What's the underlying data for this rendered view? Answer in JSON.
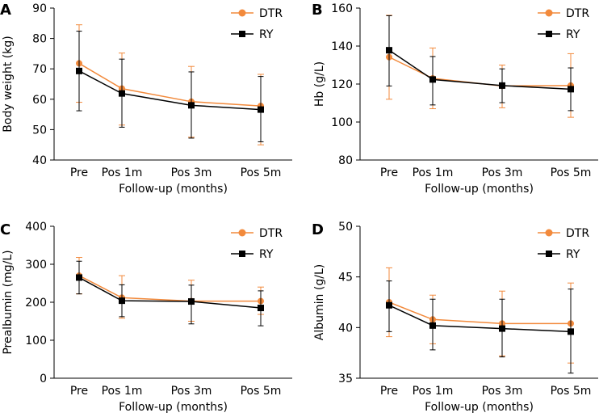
{
  "colors": {
    "dtr": "#f28a3c",
    "ry": "#000000",
    "axis": "#000000"
  },
  "chart_data": [
    {
      "type": "line",
      "panel_letter": "A",
      "xlabel": "Follow-up (months)",
      "ylabel": "Body weight (kg)",
      "categories": [
        "Pre",
        "Pos 1m",
        "Pos 3m",
        "Pos 5m"
      ],
      "ylim": [
        40,
        90
      ],
      "yticks": [
        "40",
        "50",
        "60",
        "70",
        "80",
        "90"
      ],
      "series": [
        {
          "name": "DTR",
          "marker": "circle",
          "values": [
            71.8,
            63.5,
            59.2,
            57.8
          ],
          "err_low": [
            59.0,
            51.5,
            47.5,
            45.0
          ],
          "err_high": [
            84.5,
            75.2,
            70.8,
            68.2
          ]
        },
        {
          "name": "RY",
          "marker": "square",
          "values": [
            69.3,
            61.9,
            58.0,
            56.6
          ],
          "err_low": [
            56.2,
            50.8,
            47.2,
            46.0
          ],
          "err_high": [
            82.4,
            73.2,
            69.0,
            67.5
          ]
        }
      ]
    },
    {
      "type": "line",
      "panel_letter": "B",
      "xlabel": "Follow-up (months)",
      "ylabel": "Hb (g/L)",
      "categories": [
        "Pre",
        "Pos 1m",
        "Pos 3m",
        "Pos 5m"
      ],
      "ylim": [
        80,
        160
      ],
      "yticks": [
        "80",
        "100",
        "120",
        "140",
        "160"
      ],
      "series": [
        {
          "name": "DTR",
          "marker": "circle",
          "values": [
            134.2,
            123.0,
            119.0,
            119.2
          ],
          "err_low": [
            112.0,
            107.0,
            107.5,
            102.5
          ],
          "err_high": [
            156.2,
            139.0,
            130.0,
            136.0
          ]
        },
        {
          "name": "RY",
          "marker": "square",
          "values": [
            137.8,
            122.4,
            119.2,
            117.3
          ],
          "err_low": [
            119.0,
            109.0,
            110.2,
            106.0
          ],
          "err_high": [
            156.0,
            134.5,
            128.0,
            128.5
          ]
        }
      ]
    },
    {
      "type": "line",
      "panel_letter": "C",
      "xlabel": "Follow-up (months)",
      "ylabel": "Prealbumin (mg/L)",
      "categories": [
        "Pre",
        "Pos 1m",
        "Pos 3m",
        "Pos 5m"
      ],
      "ylim": [
        0,
        400
      ],
      "yticks": [
        "0",
        "100",
        "200",
        "300",
        "400"
      ],
      "series": [
        {
          "name": "DTR",
          "marker": "circle",
          "values": [
            270,
            212,
            203,
            203
          ],
          "err_low": [
            222,
            158,
            150,
            168
          ],
          "err_high": [
            318,
            270,
            258,
            240
          ]
        },
        {
          "name": "RY",
          "marker": "square",
          "values": [
            265,
            204,
            202,
            185
          ],
          "err_low": [
            222,
            162,
            143,
            138
          ],
          "err_high": [
            308,
            246,
            245,
            230
          ]
        }
      ]
    },
    {
      "type": "line",
      "panel_letter": "D",
      "xlabel": "Follow-up (months)",
      "ylabel": "Albumin (g/L)",
      "categories": [
        "Pre",
        "Pos 1m",
        "Pos 3m",
        "Pos 5m"
      ],
      "ylim": [
        35,
        50
      ],
      "yticks": [
        "35",
        "40",
        "45",
        "50"
      ],
      "series": [
        {
          "name": "DTR",
          "marker": "circle",
          "values": [
            42.5,
            40.8,
            40.4,
            40.4
          ],
          "err_low": [
            39.1,
            38.4,
            37.2,
            36.5
          ],
          "err_high": [
            45.9,
            43.2,
            43.6,
            44.4
          ]
        },
        {
          "name": "RY",
          "marker": "square",
          "values": [
            42.2,
            40.2,
            39.9,
            39.6
          ],
          "err_low": [
            39.6,
            37.8,
            37.1,
            35.5
          ],
          "err_high": [
            44.6,
            42.8,
            42.8,
            43.8
          ]
        }
      ]
    }
  ]
}
